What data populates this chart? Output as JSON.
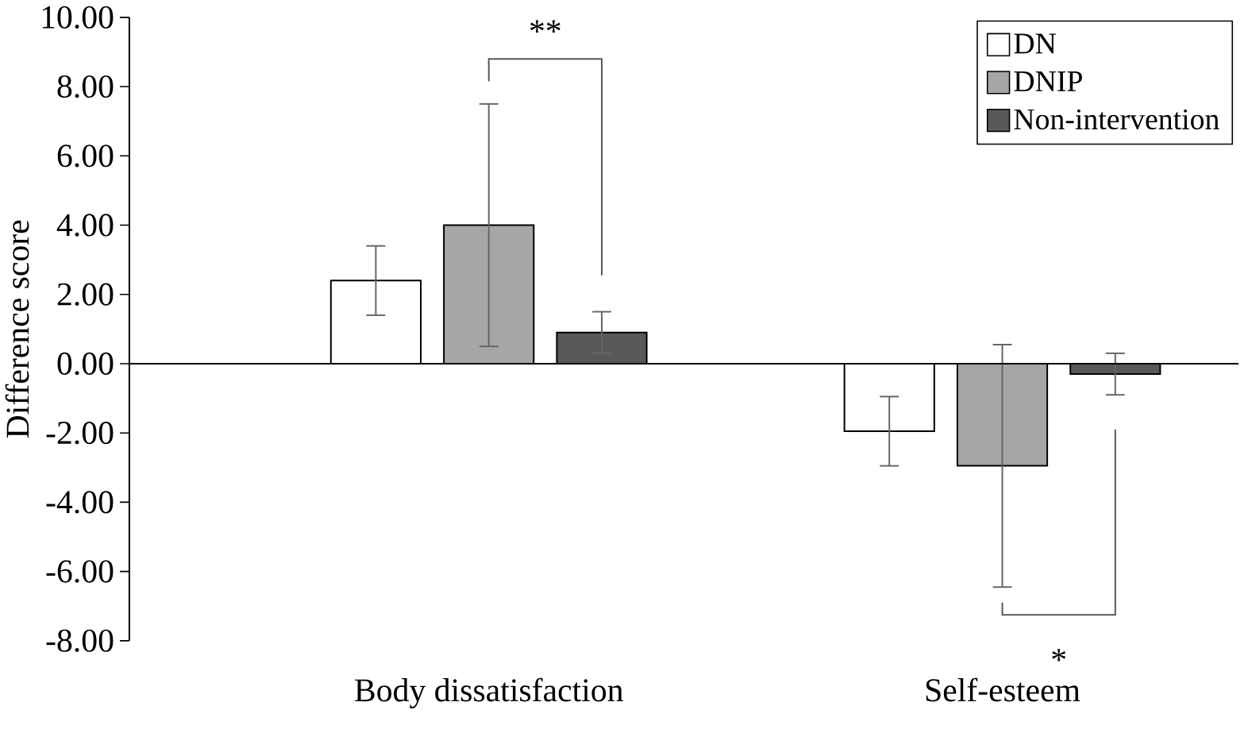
{
  "chart_data": {
    "type": "bar",
    "ylabel": "Difference score",
    "categories": [
      "Body dissatisfaction",
      "Self-esteem"
    ],
    "series": [
      {
        "name": "DN",
        "color": "#ffffff",
        "values": [
          2.4,
          -1.95
        ],
        "errors": [
          1.0,
          1.0
        ]
      },
      {
        "name": "DNIP",
        "color": "#a6a6a6",
        "values": [
          4.0,
          -2.95
        ],
        "errors": [
          3.5,
          3.5
        ]
      },
      {
        "name": "Non-intervention",
        "color": "#595959",
        "values": [
          0.9,
          -0.3
        ],
        "errors": [
          0.6,
          0.6
        ]
      }
    ],
    "ylim": [
      -8,
      10
    ],
    "yticks": [
      {
        "value": -8,
        "label": "-8.00"
      },
      {
        "value": -6,
        "label": "-6.00"
      },
      {
        "value": -4,
        "label": "-4.00"
      },
      {
        "value": -2,
        "label": "-2.00"
      },
      {
        "value": 0,
        "label": "0.00"
      },
      {
        "value": 2,
        "label": "2.00"
      },
      {
        "value": 4,
        "label": "4.00"
      },
      {
        "value": 6,
        "label": "6.00"
      },
      {
        "value": 8,
        "label": "8.00"
      },
      {
        "value": 10,
        "label": "10.00"
      }
    ],
    "legend": "top right",
    "annotations": [
      "**",
      "*"
    ]
  }
}
